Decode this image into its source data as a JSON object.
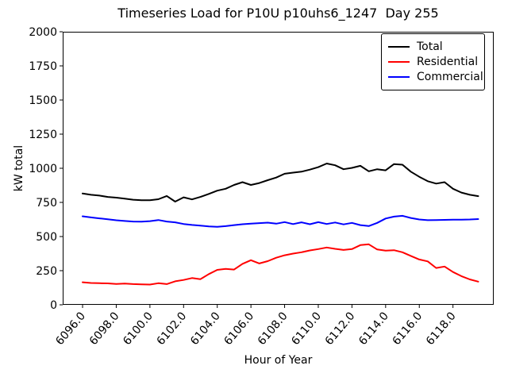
{
  "chart_data": {
    "type": "line",
    "title": "Timeseries Load for P10U p10uhs6_1247  Day 255",
    "xlabel": "Hour of Year",
    "ylabel": "kW total",
    "xlim": [
      6094.82,
      6120.42
    ],
    "ylim": [
      0,
      2000
    ],
    "grid": false,
    "legend_position": "upper right",
    "axis_color": "#000000",
    "background_color": "#ffffff",
    "xticks": {
      "values": [
        6096,
        6098,
        6100,
        6102,
        6104,
        6106,
        6108,
        6110,
        6112,
        6114,
        6116,
        6118
      ],
      "labels": [
        "6096.0",
        "6098.0",
        "6100.0",
        "6102.0",
        "6104.0",
        "6106.0",
        "6108.0",
        "6110.0",
        "6112.0",
        "6114.0",
        "6116.0",
        "6118.0"
      ]
    },
    "yticks": {
      "values": [
        0,
        250,
        500,
        750,
        1000,
        1250,
        1500,
        1750,
        2000
      ],
      "labels": [
        "0",
        "250",
        "500",
        "750",
        "1000",
        "1250",
        "1500",
        "1750",
        "2000"
      ]
    },
    "x": [
      6096.0,
      6096.5,
      6097.0,
      6097.5,
      6098.0,
      6098.5,
      6099.0,
      6099.5,
      6100.0,
      6100.5,
      6101.0,
      6101.5,
      6102.0,
      6102.5,
      6103.0,
      6103.5,
      6104.0,
      6104.5,
      6105.0,
      6105.5,
      6106.0,
      6106.5,
      6107.0,
      6107.5,
      6108.0,
      6108.5,
      6109.0,
      6109.5,
      6110.0,
      6110.5,
      6111.0,
      6111.5,
      6112.0,
      6112.5,
      6113.0,
      6113.5,
      6114.0,
      6114.5,
      6115.0,
      6115.5,
      6116.0,
      6116.5,
      6117.0,
      6117.5,
      6118.0,
      6118.5,
      6119.0,
      6119.5
    ],
    "series": [
      {
        "name": "Total",
        "color": "#000000",
        "values": [
          815,
          806,
          800,
          790,
          785,
          778,
          770,
          766,
          766,
          773,
          797,
          756,
          787,
          772,
          790,
          812,
          836,
          850,
          878,
          898,
          878,
          892,
          913,
          932,
          960,
          968,
          975,
          990,
          1008,
          1035,
          1022,
          993,
          1003,
          1018,
          978,
          993,
          985,
          1031,
          1026,
          975,
          938,
          905,
          888,
          898,
          850,
          822,
          806,
          796
        ]
      },
      {
        "name": "Residential",
        "color": "#ff0000",
        "values": [
          165,
          160,
          158,
          157,
          153,
          155,
          152,
          150,
          148,
          158,
          152,
          172,
          182,
          196,
          188,
          225,
          256,
          263,
          258,
          300,
          327,
          303,
          320,
          345,
          363,
          375,
          385,
          398,
          408,
          420,
          410,
          402,
          408,
          437,
          443,
          405,
          397,
          400,
          385,
          358,
          332,
          318,
          270,
          280,
          240,
          210,
          186,
          170
        ]
      },
      {
        "name": "Commercial",
        "color": "#0000ff",
        "values": [
          648,
          640,
          633,
          626,
          619,
          614,
          610,
          609,
          613,
          621,
          610,
          604,
          592,
          585,
          580,
          574,
          571,
          576,
          584,
          590,
          595,
          598,
          602,
          594,
          606,
          591,
          604,
          590,
          605,
          592,
          603,
          589,
          600,
          584,
          577,
          600,
          632,
          646,
          652,
          636,
          625,
          620,
          621,
          622,
          623,
          624,
          625,
          628
        ]
      }
    ]
  }
}
